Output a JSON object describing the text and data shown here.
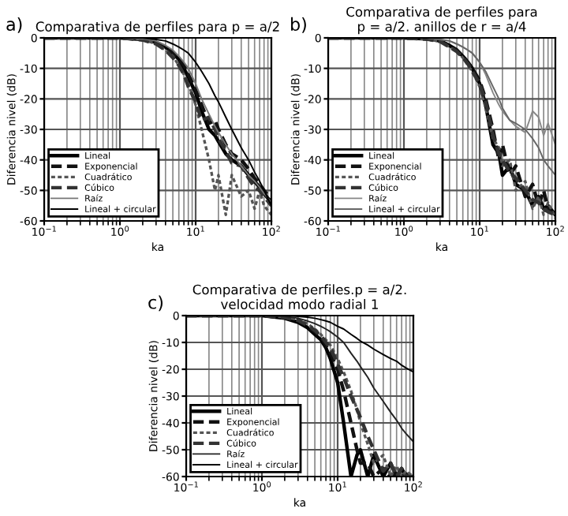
{
  "chart_data": [
    {
      "type": "line",
      "title": "Comparativa de perfiles para p = a/2",
      "annotations": [
        "a)"
      ],
      "xlabel": "ka",
      "ylabel": "Diferencia nivel (dB)",
      "log": "x",
      "grid": true,
      "legend": "bottom left",
      "x": [
        0.1,
        0.5,
        1,
        2,
        3,
        4,
        5,
        6,
        7,
        8,
        10,
        12,
        15,
        18,
        20,
        25,
        30,
        40,
        50,
        60,
        70,
        80,
        100
      ],
      "xlim": [
        0.1,
        100
      ],
      "xticks": [
        {
          "value": 0.1,
          "label": "10$^{−1}$"
        },
        {
          "value": 1,
          "label": "10$^{0}$"
        },
        {
          "value": 10,
          "label": "10$^{1}$"
        },
        {
          "value": 100,
          "label": "10$^{2}$"
        }
      ],
      "ylim": [
        -60,
        0
      ],
      "yticks": [
        -60,
        -50,
        -40,
        -30,
        -20,
        -10,
        0
      ],
      "series": [
        {
          "name": "Lineal",
          "color": "#000000",
          "line_style": "solid",
          "values": [
            0,
            0,
            0,
            -0.5,
            -1.5,
            -3,
            -5,
            -7,
            -10,
            -13,
            -18,
            -24,
            -30,
            -32,
            -34,
            -38,
            -40,
            -42,
            -45,
            -47,
            -49,
            -51,
            -54
          ]
        },
        {
          "name": "Exponencial",
          "color": "#111111",
          "line_style": "dashed",
          "values": [
            0,
            0,
            0,
            -0.5,
            -1.5,
            -3,
            -5,
            -7,
            -9,
            -12,
            -17,
            -22,
            -28,
            -27,
            -30,
            -35,
            -38,
            -40,
            -43,
            -46,
            -48,
            -50,
            -53
          ]
        },
        {
          "name": "Cuadrático",
          "color": "#555555",
          "line_style": "dotted",
          "values": [
            0,
            0,
            0,
            -0.5,
            -2,
            -4,
            -6,
            -9,
            -12,
            -15,
            -22,
            -30,
            -40,
            -50,
            -45,
            -58,
            -45,
            -52,
            -50,
            -56,
            -50,
            -55,
            -58
          ]
        },
        {
          "name": "Cúbico",
          "color": "#333333",
          "line_style": "dashed",
          "values": [
            0,
            0,
            0,
            -0.7,
            -2,
            -4,
            -6.5,
            -9,
            -12,
            -16,
            -21,
            -27,
            -26,
            -30,
            -33,
            -37,
            -41,
            -42,
            -46,
            -49,
            -50,
            -52,
            -55
          ]
        },
        {
          "name": "Raíz",
          "color": "#777777",
          "line_style": "solid",
          "values": [
            0,
            0,
            0,
            -0.3,
            -1,
            -2.5,
            -4,
            -6,
            -8,
            -10,
            -15,
            -20,
            -25,
            -29,
            -31,
            -35,
            -38,
            -42,
            -45,
            -47,
            -49,
            -51,
            -54
          ]
        },
        {
          "name": "Lineal + circular",
          "color": "#000000",
          "line_style": "solid",
          "values": [
            0,
            0,
            0,
            0,
            -0.5,
            -1,
            -2,
            -3,
            -4,
            -5,
            -8,
            -11,
            -15,
            -19,
            -21,
            -26,
            -30,
            -36,
            -40,
            -44,
            -47,
            -50,
            -55
          ]
        }
      ]
    },
    {
      "type": "line",
      "title": "Comparativa de perfiles para\np = a/2. anillos de r = a/4",
      "annotations": [
        "b)"
      ],
      "xlabel": "ka",
      "ylabel": "Diferencia nivel (dB)",
      "log": "x",
      "grid": true,
      "legend": "bottom left",
      "x": [
        0.1,
        0.5,
        1,
        2,
        3,
        4,
        5,
        6,
        7,
        8,
        10,
        12,
        15,
        18,
        20,
        25,
        30,
        40,
        50,
        60,
        70,
        80,
        100
      ],
      "xlim": [
        0.1,
        100
      ],
      "xticks": [
        {
          "value": 0.1,
          "label": "10$^{−1}$"
        },
        {
          "value": 1,
          "label": "10$^{0}$"
        },
        {
          "value": 10,
          "label": "10$^{1}$"
        },
        {
          "value": 100,
          "label": "10$^{2}$"
        }
      ],
      "ylim": [
        -60,
        0
      ],
      "yticks": [
        -60,
        -50,
        -40,
        -30,
        -20,
        -10,
        0
      ],
      "series": [
        {
          "name": "Lineal",
          "color": "#000000",
          "line_style": "solid",
          "values": [
            0,
            0,
            0,
            -0.3,
            -1,
            -2.5,
            -4,
            -6,
            -8,
            -10,
            -15,
            -22,
            -35,
            -38,
            -45,
            -42,
            -48,
            -50,
            -55,
            -52,
            -56,
            -55,
            -58
          ]
        },
        {
          "name": "Exponencial",
          "color": "#111111",
          "line_style": "dashed",
          "values": [
            0,
            0,
            0,
            -0.3,
            -1,
            -2.5,
            -4,
            -6,
            -8,
            -10,
            -14,
            -20,
            -30,
            -40,
            -35,
            -45,
            -42,
            -52,
            -48,
            -55,
            -50,
            -56,
            -58
          ]
        },
        {
          "name": "Cuadrático",
          "color": "#555555",
          "line_style": "dotted",
          "values": [
            0,
            0,
            0,
            -0.4,
            -1.2,
            -3,
            -4.5,
            -6.5,
            -9,
            -11,
            -16,
            -23,
            -33,
            -36,
            -42,
            -40,
            -50,
            -47,
            -56,
            -52,
            -58,
            -54,
            -59
          ]
        },
        {
          "name": "Cúbico",
          "color": "#333333",
          "line_style": "dashed",
          "values": [
            0,
            0,
            0,
            -0.4,
            -1.2,
            -3,
            -4.5,
            -6.5,
            -8.5,
            -11,
            -15,
            -21,
            -32,
            -38,
            -40,
            -44,
            -46,
            -50,
            -53,
            -54,
            -56,
            -57,
            -58
          ]
        },
        {
          "name": "Raíz",
          "color": "#888888",
          "line_style": "solid",
          "values": [
            0,
            0,
            0,
            0,
            -0.5,
            -1,
            -2,
            -3,
            -4,
            -5,
            -8,
            -12,
            -18,
            -22,
            -24,
            -27,
            -29,
            -31,
            -24,
            -26,
            -32,
            -28,
            -35
          ]
        },
        {
          "name": "Lineal + circular",
          "color": "#666666",
          "line_style": "solid",
          "values": [
            0,
            0,
            0,
            0,
            -0.5,
            -1,
            -2,
            -3,
            -4,
            -5,
            -8,
            -11,
            -16,
            -20,
            -23,
            -27,
            -28,
            -30,
            -33,
            -36,
            -40,
            -42,
            -45
          ]
        }
      ]
    },
    {
      "type": "line",
      "title": "Comparativa de perfiles.p = a/2.\nvelocidad modo radial 1",
      "annotations": [
        "c)"
      ],
      "xlabel": "ka",
      "ylabel": "Diferencia nivel (dB)",
      "log": "x",
      "grid": true,
      "legend": "bottom left",
      "x": [
        0.1,
        0.5,
        1,
        2,
        3,
        4,
        5,
        6,
        7,
        8,
        10,
        12,
        15,
        18,
        20,
        25,
        30,
        40,
        50,
        60,
        70,
        80,
        100
      ],
      "xlim": [
        0.1,
        100
      ],
      "xticks": [
        {
          "value": 0.1,
          "label": "10$^{−1}$"
        },
        {
          "value": 1,
          "label": "10$^{0}$"
        },
        {
          "value": 10,
          "label": "10$^{1}$"
        },
        {
          "value": 100,
          "label": "10$^{2}$"
        }
      ],
      "ylim": [
        -60,
        0
      ],
      "yticks": [
        -60,
        -50,
        -40,
        -30,
        -20,
        -10,
        0
      ],
      "series": [
        {
          "name": "Lineal",
          "color": "#000000",
          "line_style": "solid",
          "values": [
            0,
            0,
            0,
            -1,
            -2.5,
            -4.5,
            -7,
            -9,
            -12,
            -16,
            -25,
            -40,
            -60,
            -52,
            -50,
            -60,
            -52,
            -60,
            -55,
            -60,
            -57,
            -60,
            -60
          ]
        },
        {
          "name": "Exponencial",
          "color": "#111111",
          "line_style": "dashed",
          "values": [
            0,
            0,
            0,
            -0.8,
            -2,
            -4,
            -6,
            -8,
            -11,
            -14,
            -20,
            -28,
            -40,
            -50,
            -55,
            -55,
            -60,
            -57,
            -60,
            -58,
            -60,
            -59,
            -60
          ]
        },
        {
          "name": "Cuadrático",
          "color": "#555555",
          "line_style": "dotted",
          "values": [
            0,
            0,
            0,
            -0.6,
            -1.5,
            -3,
            -5,
            -7,
            -9,
            -11,
            -16,
            -21,
            -28,
            -35,
            -40,
            -48,
            -55,
            -52,
            -60,
            -56,
            -60,
            -58,
            -60
          ]
        },
        {
          "name": "Cúbico",
          "color": "#333333",
          "line_style": "dashed",
          "values": [
            0,
            0,
            0,
            -0.7,
            -1.8,
            -3.5,
            -5.5,
            -7.5,
            -10,
            -12,
            -18,
            -23,
            -30,
            -35,
            -38,
            -45,
            -50,
            -58,
            -55,
            -60,
            -57,
            -60,
            -60
          ]
        },
        {
          "name": "Raíz",
          "color": "#222222",
          "line_style": "solid",
          "values": [
            0,
            0,
            0,
            -0.3,
            -1,
            -2,
            -3,
            -4,
            -5,
            -6,
            -8,
            -10,
            -14,
            -17,
            -19,
            -23,
            -27,
            -32,
            -36,
            -39,
            -42,
            -44,
            -47
          ]
        },
        {
          "name": "Lineal + circular",
          "color": "#000000",
          "line_style": "solid",
          "values": [
            0,
            0,
            0,
            0,
            -0.3,
            -0.6,
            -1,
            -1.5,
            -2,
            -2.5,
            -4,
            -5,
            -7,
            -8.5,
            -9.5,
            -11,
            -12.5,
            -14.5,
            -16,
            -17,
            -18.5,
            -19.5,
            -21
          ]
        }
      ]
    }
  ]
}
